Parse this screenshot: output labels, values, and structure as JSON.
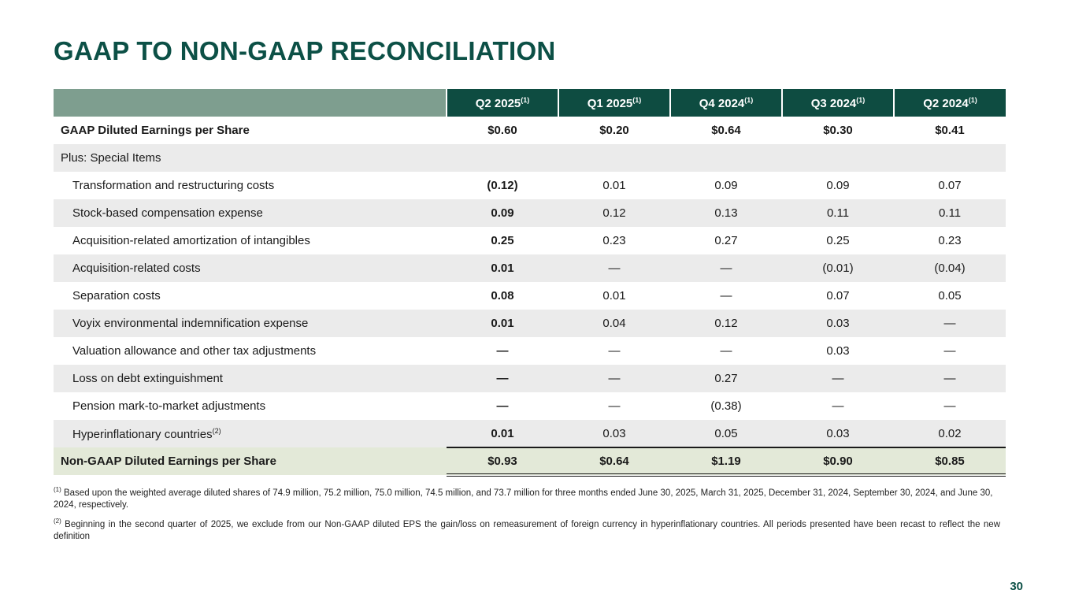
{
  "slide": {
    "title": "GAAP TO NON-GAAP RECONCILIATION",
    "page_number": "30"
  },
  "colors": {
    "title_green": "#0c5046",
    "header_dark_green": "#0e4c41",
    "header_sage_green": "#7e9e8f",
    "row_alt_gray": "#ebebeb",
    "total_row_green": "#e3e9d8",
    "text": "#1a1a1a"
  },
  "chart_data": {
    "type": "table",
    "title": "GAAP TO NON-GAAP RECONCILIATION",
    "columns": [
      {
        "label": "Q2 2025",
        "superscript": "(1)"
      },
      {
        "label": "Q1 2025",
        "superscript": "(1)"
      },
      {
        "label": "Q4 2024",
        "superscript": "(1)"
      },
      {
        "label": "Q3 2024",
        "superscript": "(1)"
      },
      {
        "label": "Q2 2024",
        "superscript": "(1)"
      }
    ],
    "rows": [
      {
        "label": "GAAP Diluted Earnings per Share",
        "style": "gaap",
        "values": [
          "$0.60",
          "$0.20",
          "$0.64",
          "$0.30",
          "$0.41"
        ]
      },
      {
        "label": "Plus: Special Items",
        "style": "section",
        "values": [
          "",
          "",
          "",
          "",
          ""
        ]
      },
      {
        "label": "Transformation and restructuring costs",
        "style": "item",
        "values": [
          "(0.12)",
          "0.01",
          "0.09",
          "0.09",
          "0.07"
        ]
      },
      {
        "label": "Stock-based compensation expense",
        "style": "item",
        "values": [
          "0.09",
          "0.12",
          "0.13",
          "0.11",
          "0.11"
        ]
      },
      {
        "label": "Acquisition-related amortization of intangibles",
        "style": "item",
        "values": [
          "0.25",
          "0.23",
          "0.27",
          "0.25",
          "0.23"
        ]
      },
      {
        "label": "Acquisition-related costs",
        "style": "item",
        "values": [
          "0.01",
          "—",
          "—",
          "(0.01)",
          "(0.04)"
        ]
      },
      {
        "label": "Separation costs",
        "style": "item",
        "values": [
          "0.08",
          "0.01",
          "—",
          "0.07",
          "0.05"
        ]
      },
      {
        "label": "Voyix environmental indemnification expense",
        "style": "item",
        "values": [
          "0.01",
          "0.04",
          "0.12",
          "0.03",
          "—"
        ]
      },
      {
        "label": "Valuation allowance and other tax adjustments",
        "style": "item",
        "values": [
          "—",
          "—",
          "—",
          "0.03",
          "—"
        ]
      },
      {
        "label": "Loss on debt extinguishment",
        "style": "item",
        "values": [
          "—",
          "—",
          "0.27",
          "—",
          "—"
        ]
      },
      {
        "label": "Pension mark-to-market adjustments",
        "style": "item",
        "values": [
          "—",
          "—",
          "(0.38)",
          "—",
          "—"
        ]
      },
      {
        "label": "Hyperinflationary countries",
        "label_superscript": "(2)",
        "style": "item",
        "values": [
          "0.01",
          "0.03",
          "0.05",
          "0.03",
          "0.02"
        ]
      },
      {
        "label": "Non-GAAP Diluted Earnings per Share",
        "style": "total",
        "values": [
          "$0.93",
          "$0.64",
          "$1.19",
          "$0.90",
          "$0.85"
        ]
      }
    ]
  },
  "footnotes": [
    {
      "marker": "(1)",
      "text": "Based upon the weighted average diluted shares of 74.9 million, 75.2 million, 75.0 million, 74.5 million, and 73.7 million for three months ended June 30, 2025, March 31, 2025, December 31, 2024, September 30, 2024, and June 30, 2024, respectively."
    },
    {
      "marker": "(2)",
      "text": "Beginning in the second quarter of 2025, we exclude from our Non-GAAP diluted EPS the gain/loss on remeasurement of foreign currency in hyperinflationary countries. All periods presented have been recast to reflect the new definition"
    }
  ]
}
